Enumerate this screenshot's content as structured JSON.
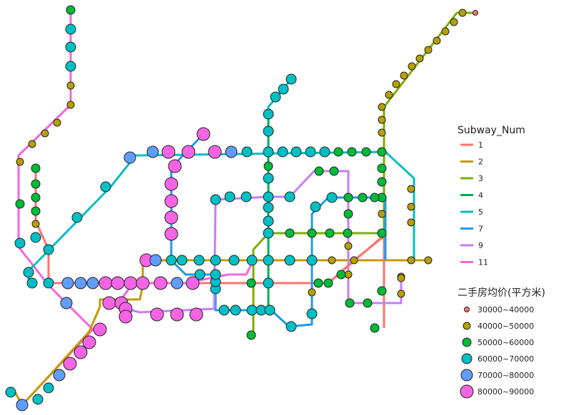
{
  "legend_lines": {
    "title": "Subway_Num",
    "items": [
      {
        "label": "1",
        "color": "#F8766D"
      },
      {
        "label": "2",
        "color": "#C49A00"
      },
      {
        "label": "3",
        "color": "#7CAE00"
      },
      {
        "label": "4",
        "color": "#00B050"
      },
      {
        "label": "5",
        "color": "#00BFC4"
      },
      {
        "label": "7",
        "color": "#1E9BE8"
      },
      {
        "label": "9",
        "color": "#C77CFF"
      },
      {
        "label": "11",
        "color": "#F564E3"
      }
    ]
  },
  "legend_price": {
    "title": "二手房均价(平方米)",
    "items": [
      {
        "label": "30000~40000",
        "color": "#F8766D"
      },
      {
        "label": "40000~50000",
        "color": "#B79F00"
      },
      {
        "label": "50000~60000",
        "color": "#00BA38"
      },
      {
        "label": "60000~70000",
        "color": "#00BFC4"
      },
      {
        "label": "70000~80000",
        "color": "#619CFF"
      },
      {
        "label": "80000~90000",
        "color": "#F564E3"
      }
    ]
  }
}
